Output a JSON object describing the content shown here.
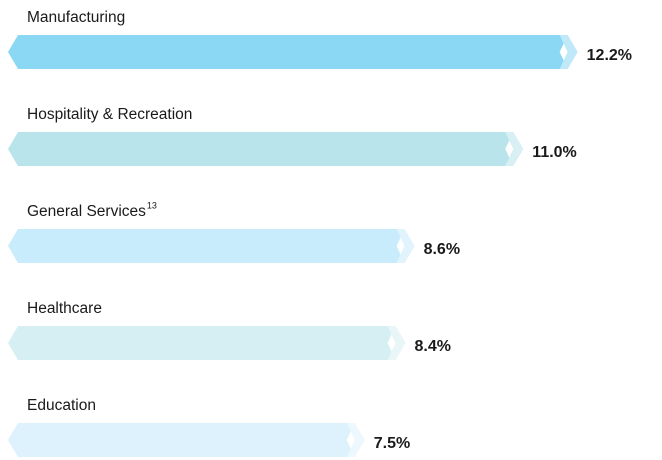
{
  "chart_data": {
    "type": "bar",
    "orientation": "horizontal",
    "categories": [
      "Manufacturing",
      "Hospitality & Recreation",
      "General Services",
      "Healthcare",
      "Education"
    ],
    "category_notes": [
      null,
      null,
      "13",
      null,
      null
    ],
    "values": [
      12.2,
      11.0,
      8.6,
      8.4,
      7.5
    ],
    "value_labels": [
      "12.2%",
      "11.0%",
      "8.6%",
      "8.4%",
      "7.5%"
    ],
    "colors": [
      "#8bd8f5",
      "#b9e4ec",
      "#c8ecfb",
      "#d5eff2",
      "#ddf2fc"
    ]
  }
}
